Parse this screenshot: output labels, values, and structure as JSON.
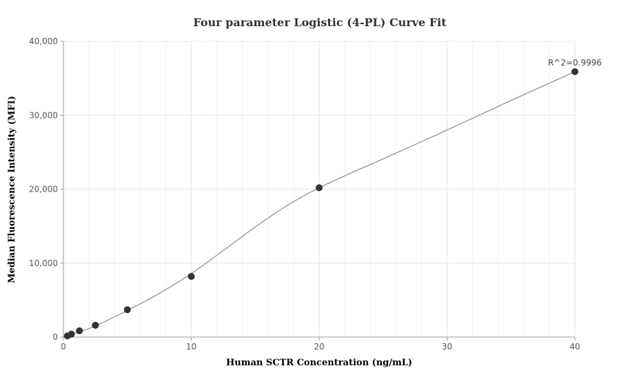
{
  "chart_data": {
    "type": "scatter",
    "title": "Four parameter Logistic (4-PL) Curve Fit",
    "xlabel": "Human SCTR Concentration (ng/mL)",
    "ylabel": "Median Fluorescence Intensity (MFI)",
    "xlim": [
      0,
      40
    ],
    "ylim": [
      0,
      40000
    ],
    "xticks": [
      0,
      10,
      20,
      30,
      40
    ],
    "yticks": [
      0,
      10000,
      20000,
      30000,
      40000
    ],
    "ytick_labels": [
      "0",
      "10,000",
      "20,000",
      "30,000",
      "40,000"
    ],
    "grid": true,
    "colors": {
      "points": "#333333",
      "curve": "#888888",
      "grid": "#e6e6e6",
      "axis": "#999999"
    },
    "series": [
      {
        "points": [
          {
            "x": 0.3125,
            "y": 150
          },
          {
            "x": 0.625,
            "y": 400
          },
          {
            "x": 1.25,
            "y": 850
          },
          {
            "x": 2.5,
            "y": 1600
          },
          {
            "x": 5,
            "y": 3700
          },
          {
            "x": 10,
            "y": 8200
          },
          {
            "x": 20,
            "y": 20200
          },
          {
            "x": 40,
            "y": 35900
          }
        ]
      }
    ],
    "fit_curve": [
      {
        "x": 0,
        "y": 0
      },
      {
        "x": 1.25,
        "y": 700
      },
      {
        "x": 2.5,
        "y": 1500
      },
      {
        "x": 5,
        "y": 3600
      },
      {
        "x": 7.5,
        "y": 5900
      },
      {
        "x": 10,
        "y": 8600
      },
      {
        "x": 12.5,
        "y": 11700
      },
      {
        "x": 15,
        "y": 14900
      },
      {
        "x": 17.5,
        "y": 17800
      },
      {
        "x": 20,
        "y": 20200
      },
      {
        "x": 22.5,
        "y": 22200
      },
      {
        "x": 25,
        "y": 24100
      },
      {
        "x": 30,
        "y": 28000
      },
      {
        "x": 35,
        "y": 32000
      },
      {
        "x": 40,
        "y": 35900
      }
    ],
    "annotation": "R^2=0.9996"
  }
}
